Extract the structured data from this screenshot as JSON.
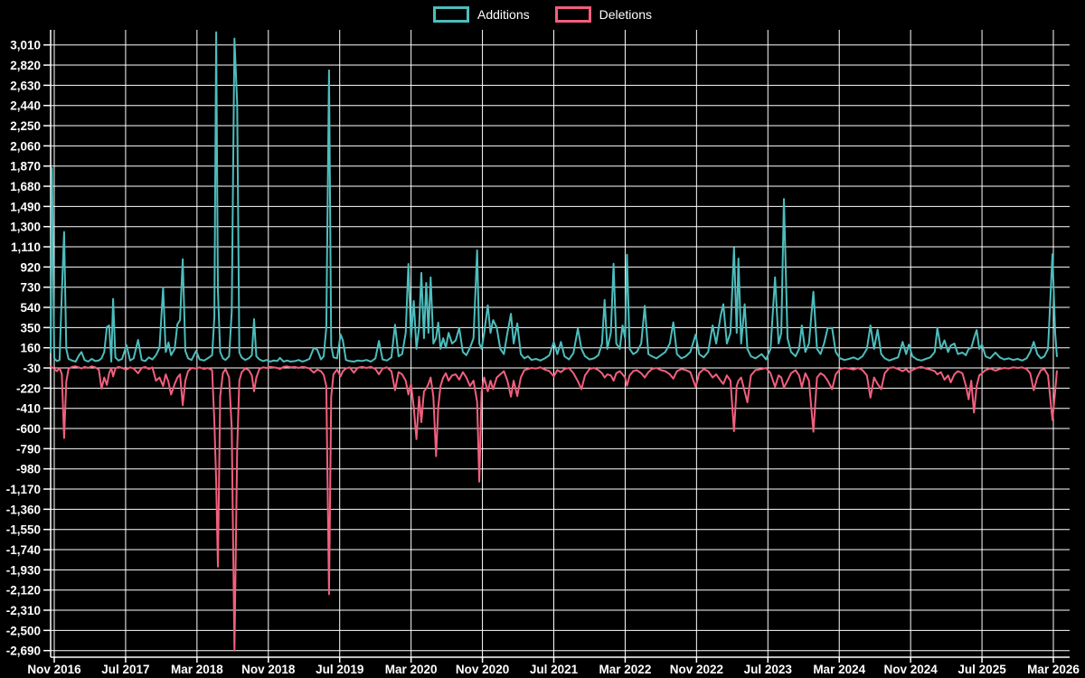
{
  "legend": {
    "additions_label": "Additions",
    "deletions_label": "Deletions"
  },
  "colors": {
    "background": "#000000",
    "grid": "#ffffff",
    "text": "#ffffff",
    "additions": "#4dbdbd",
    "deletions": "#f25f7e"
  },
  "chart_data": {
    "type": "line",
    "title": "",
    "xlabel": "",
    "ylabel": "",
    "legend_position": "top-center",
    "grid": true,
    "ylim": [
      -2780,
      3160
    ],
    "y_tick_step": 190,
    "y_ticks": [
      3010,
      2820,
      2630,
      2440,
      2250,
      2060,
      1870,
      1680,
      1490,
      1300,
      1110,
      920,
      730,
      540,
      350,
      160,
      -30,
      -220,
      -410,
      -600,
      -790,
      -980,
      -1170,
      -1360,
      -1550,
      -1740,
      -1930,
      -2120,
      -2310,
      -2500,
      -2690
    ],
    "x_ticks": [
      {
        "label": "Nov 2016",
        "month": 0
      },
      {
        "label": "Jul 2017",
        "month": 8
      },
      {
        "label": "Mar 2018",
        "month": 16
      },
      {
        "label": "Nov 2018",
        "month": 24
      },
      {
        "label": "Jul 2019",
        "month": 32
      },
      {
        "label": "Mar 2020",
        "month": 40
      },
      {
        "label": "Nov 2020",
        "month": 48
      },
      {
        "label": "Jul 2021",
        "month": 56
      },
      {
        "label": "Mar 2022",
        "month": 64
      },
      {
        "label": "Nov 2022",
        "month": 72
      },
      {
        "label": "Jul 2023",
        "month": 80
      },
      {
        "label": "Mar 2024",
        "month": 88
      },
      {
        "label": "Nov 2024",
        "month": 96
      },
      {
        "label": "Jul 2025",
        "month": 104
      },
      {
        "label": "Mar 2026",
        "month": 112
      }
    ],
    "series": [
      {
        "name": "Additions",
        "color": "#4dbdbd",
        "point_index": 1
      },
      {
        "name": "Deletions",
        "color": "#f25f7e",
        "point_index": 2
      }
    ],
    "points_format": "[months_since_Nov_2016, additions, deletions]",
    "points": [
      [
        -0.4,
        120,
        -15
      ],
      [
        -0.25,
        1850,
        -25
      ],
      [
        0.0,
        60,
        -40
      ],
      [
        0.3,
        35,
        -60
      ],
      [
        0.6,
        45,
        -30
      ],
      [
        0.85,
        680,
        -90
      ],
      [
        1.1,
        1250,
        -690
      ],
      [
        1.35,
        150,
        -160
      ],
      [
        1.6,
        55,
        -40
      ],
      [
        2.0,
        40,
        -20
      ],
      [
        2.4,
        30,
        -15
      ],
      [
        2.75,
        85,
        -25
      ],
      [
        3.05,
        120,
        -35
      ],
      [
        3.4,
        45,
        -20
      ],
      [
        3.8,
        30,
        -30
      ],
      [
        4.2,
        55,
        -15
      ],
      [
        4.6,
        35,
        -25
      ],
      [
        5.0,
        40,
        -45
      ],
      [
        5.3,
        60,
        -225
      ],
      [
        5.6,
        120,
        -120
      ],
      [
        5.9,
        355,
        -190
      ],
      [
        6.15,
        370,
        -80
      ],
      [
        6.4,
        30,
        -30
      ],
      [
        6.6,
        620,
        -110
      ],
      [
        6.85,
        70,
        -35
      ],
      [
        7.2,
        40,
        -20
      ],
      [
        7.6,
        55,
        -30
      ],
      [
        8.1,
        185,
        -45
      ],
      [
        8.5,
        40,
        -25
      ],
      [
        8.9,
        60,
        -35
      ],
      [
        9.4,
        234,
        -80
      ],
      [
        9.8,
        45,
        -30
      ],
      [
        10.2,
        35,
        -20
      ],
      [
        10.6,
        70,
        -40
      ],
      [
        11.0,
        50,
        -25
      ],
      [
        11.4,
        90,
        -150
      ],
      [
        11.8,
        160,
        -120
      ],
      [
        12.2,
        727,
        -200
      ],
      [
        12.5,
        120,
        -90
      ],
      [
        12.8,
        210,
        -160
      ],
      [
        13.1,
        90,
        -280
      ],
      [
        13.5,
        150,
        -180
      ],
      [
        13.8,
        380,
        -120
      ],
      [
        14.1,
        420,
        -90
      ],
      [
        14.4,
        994,
        -380
      ],
      [
        14.7,
        130,
        -150
      ],
      [
        15.0,
        60,
        -60
      ],
      [
        15.4,
        45,
        -30
      ],
      [
        15.9,
        130,
        -35
      ],
      [
        16.3,
        50,
        -25
      ],
      [
        16.8,
        40,
        -40
      ],
      [
        17.2,
        60,
        -30
      ],
      [
        17.7,
        90,
        -50
      ],
      [
        17.95,
        450,
        -540
      ],
      [
        18.15,
        3130,
        -1100
      ],
      [
        18.35,
        700,
        -1900
      ],
      [
        18.6,
        120,
        -300
      ],
      [
        18.9,
        60,
        -80
      ],
      [
        19.2,
        45,
        -40
      ],
      [
        19.6,
        80,
        -120
      ],
      [
        19.9,
        500,
        -600
      ],
      [
        20.2,
        3070,
        -2690
      ],
      [
        20.5,
        2460,
        -800
      ],
      [
        20.75,
        115,
        -150
      ],
      [
        21.0,
        70,
        -72
      ],
      [
        21.4,
        45,
        -35
      ],
      [
        21.8,
        60,
        -50
      ],
      [
        22.15,
        90,
        -100
      ],
      [
        22.4,
        430,
        -250
      ],
      [
        22.65,
        80,
        -120
      ],
      [
        23.0,
        50,
        -40
      ],
      [
        23.4,
        35,
        -25
      ],
      [
        23.8,
        45,
        -30
      ],
      [
        24.2,
        30,
        -20
      ],
      [
        24.6,
        40,
        -25
      ],
      [
        25.0,
        35,
        -30
      ],
      [
        25.3,
        65,
        -40
      ],
      [
        25.7,
        30,
        -20
      ],
      [
        26.1,
        40,
        -15
      ],
      [
        26.5,
        30,
        -25
      ],
      [
        27.0,
        35,
        -20
      ],
      [
        27.4,
        45,
        -30
      ],
      [
        27.8,
        30,
        -20
      ],
      [
        28.2,
        40,
        -25
      ],
      [
        28.6,
        55,
        -35
      ],
      [
        29.1,
        160,
        -75
      ],
      [
        29.5,
        140,
        -45
      ],
      [
        29.9,
        50,
        -60
      ],
      [
        30.2,
        80,
        -95
      ],
      [
        30.5,
        350,
        -200
      ],
      [
        30.8,
        2770,
        -2160
      ],
      [
        31.05,
        180,
        -300
      ],
      [
        31.3,
        70,
        -90
      ],
      [
        31.7,
        60,
        -45
      ],
      [
        32.1,
        285,
        -110
      ],
      [
        32.35,
        230,
        -60
      ],
      [
        32.7,
        45,
        -35
      ],
      [
        33.1,
        35,
        -25
      ],
      [
        33.6,
        30,
        -75
      ],
      [
        34.0,
        40,
        -30
      ],
      [
        34.5,
        35,
        -20
      ],
      [
        35.0,
        45,
        -30
      ],
      [
        35.5,
        30,
        -20
      ],
      [
        36.0,
        60,
        -40
      ],
      [
        36.4,
        224,
        -90
      ],
      [
        36.8,
        50,
        -35
      ],
      [
        37.3,
        40,
        -25
      ],
      [
        37.8,
        70,
        -60
      ],
      [
        38.2,
        377,
        -240
      ],
      [
        38.6,
        80,
        -70
      ],
      [
        39.0,
        100,
        -90
      ],
      [
        39.4,
        300,
        -150
      ],
      [
        39.7,
        949,
        -280
      ],
      [
        40.0,
        250,
        -180
      ],
      [
        40.3,
        600,
        -400
      ],
      [
        40.6,
        150,
        -700
      ],
      [
        40.9,
        350,
        -300
      ],
      [
        41.15,
        864,
        -540
      ],
      [
        41.45,
        250,
        -250
      ],
      [
        41.7,
        770,
        -225
      ],
      [
        41.95,
        300,
        -180
      ],
      [
        42.2,
        823,
        -120
      ],
      [
        42.5,
        200,
        -300
      ],
      [
        42.8,
        250,
        -860
      ],
      [
        43.05,
        397,
        -400
      ],
      [
        43.3,
        150,
        -200
      ],
      [
        43.6,
        250,
        -120
      ],
      [
        43.9,
        160,
        -80
      ],
      [
        44.2,
        300,
        -150
      ],
      [
        44.6,
        200,
        -100
      ],
      [
        45.0,
        230,
        -90
      ],
      [
        45.4,
        345,
        -140
      ],
      [
        45.8,
        120,
        -70
      ],
      [
        46.2,
        90,
        -120
      ],
      [
        46.6,
        160,
        -200
      ],
      [
        47.0,
        250,
        -150
      ],
      [
        47.4,
        1077,
        -350
      ],
      [
        47.65,
        200,
        -1100
      ],
      [
        47.9,
        150,
        -250
      ],
      [
        48.2,
        300,
        -120
      ],
      [
        48.6,
        560,
        -250
      ],
      [
        48.9,
        300,
        -150
      ],
      [
        49.2,
        420,
        -230
      ],
      [
        49.6,
        350,
        -120
      ],
      [
        50.0,
        150,
        -90
      ],
      [
        50.4,
        100,
        -60
      ],
      [
        50.8,
        300,
        -150
      ],
      [
        51.2,
        480,
        -300
      ],
      [
        51.5,
        200,
        -150
      ],
      [
        51.9,
        390,
        -295
      ],
      [
        52.3,
        100,
        -120
      ],
      [
        52.7,
        60,
        -50
      ],
      [
        53.1,
        80,
        -40
      ],
      [
        53.5,
        45,
        -30
      ],
      [
        54.0,
        55,
        -35
      ],
      [
        54.5,
        40,
        -25
      ],
      [
        55.0,
        60,
        -45
      ],
      [
        55.5,
        90,
        -60
      ],
      [
        56.0,
        215,
        -110
      ],
      [
        56.4,
        100,
        -50
      ],
      [
        56.8,
        215,
        -70
      ],
      [
        57.2,
        80,
        -40
      ],
      [
        57.7,
        50,
        -30
      ],
      [
        58.2,
        110,
        -80
      ],
      [
        58.7,
        340,
        -155
      ],
      [
        59.1,
        150,
        -230
      ],
      [
        59.5,
        80,
        -100
      ],
      [
        60.0,
        50,
        -40
      ],
      [
        60.5,
        60,
        -30
      ],
      [
        61.0,
        90,
        -50
      ],
      [
        61.4,
        200,
        -80
      ],
      [
        61.7,
        610,
        -120
      ],
      [
        62.0,
        150,
        -90
      ],
      [
        62.4,
        300,
        -100
      ],
      [
        62.7,
        950,
        -150
      ],
      [
        63.0,
        200,
        -80
      ],
      [
        63.4,
        150,
        -60
      ],
      [
        63.7,
        370,
        -90
      ],
      [
        64.0,
        250,
        -120
      ],
      [
        64.2,
        1035,
        -197
      ],
      [
        64.5,
        150,
        -100
      ],
      [
        64.9,
        100,
        -60
      ],
      [
        65.3,
        120,
        -50
      ],
      [
        65.8,
        200,
        -80
      ],
      [
        66.2,
        555,
        -120
      ],
      [
        66.6,
        100,
        -70
      ],
      [
        67.0,
        80,
        -40
      ],
      [
        67.5,
        60,
        -30
      ],
      [
        68.0,
        90,
        -50
      ],
      [
        68.5,
        120,
        -60
      ],
      [
        69.0,
        200,
        -90
      ],
      [
        69.4,
        400,
        -130
      ],
      [
        69.8,
        100,
        -60
      ],
      [
        70.3,
        60,
        -40
      ],
      [
        70.8,
        80,
        -50
      ],
      [
        71.3,
        120,
        -70
      ],
      [
        71.9,
        285,
        -210
      ],
      [
        72.3,
        100,
        -80
      ],
      [
        72.8,
        70,
        -40
      ],
      [
        73.3,
        120,
        -60
      ],
      [
        73.8,
        370,
        -120
      ],
      [
        74.2,
        200,
        -90
      ],
      [
        74.7,
        460,
        -150
      ],
      [
        75.0,
        570,
        -180
      ],
      [
        75.4,
        200,
        -100
      ],
      [
        75.8,
        300,
        -150
      ],
      [
        76.2,
        1100,
        -625
      ],
      [
        76.5,
        300,
        -200
      ],
      [
        76.7,
        1000,
        -150
      ],
      [
        77.0,
        200,
        -120
      ],
      [
        77.4,
        570,
        -250
      ],
      [
        77.7,
        150,
        -353
      ],
      [
        78.1,
        80,
        -100
      ],
      [
        78.6,
        60,
        -50
      ],
      [
        79.3,
        100,
        -40
      ],
      [
        79.8,
        50,
        -30
      ],
      [
        80.3,
        150,
        -80
      ],
      [
        80.8,
        823,
        -208
      ],
      [
        81.2,
        200,
        -100
      ],
      [
        81.5,
        300,
        -120
      ],
      [
        81.8,
        1560,
        -215
      ],
      [
        82.2,
        250,
        -150
      ],
      [
        82.6,
        120,
        -80
      ],
      [
        83.1,
        80,
        -50
      ],
      [
        83.5,
        150,
        -100
      ],
      [
        83.8,
        370,
        -210
      ],
      [
        84.2,
        120,
        -80
      ],
      [
        84.6,
        200,
        -150
      ],
      [
        85.1,
        687,
        -630
      ],
      [
        85.5,
        150,
        -120
      ],
      [
        85.9,
        100,
        -80
      ],
      [
        86.3,
        200,
        -100
      ],
      [
        86.7,
        345,
        -150
      ],
      [
        87.2,
        345,
        -230
      ],
      [
        87.6,
        120,
        -90
      ],
      [
        88.1,
        60,
        -40
      ],
      [
        88.6,
        45,
        -30
      ],
      [
        89.1,
        55,
        -35
      ],
      [
        89.6,
        70,
        -45
      ],
      [
        90.1,
        50,
        -30
      ],
      [
        90.6,
        80,
        -50
      ],
      [
        91.1,
        150,
        -100
      ],
      [
        91.5,
        370,
        -310
      ],
      [
        91.9,
        150,
        -120
      ],
      [
        92.3,
        330,
        -180
      ],
      [
        92.7,
        100,
        -230
      ],
      [
        93.1,
        60,
        -80
      ],
      [
        93.6,
        40,
        -30
      ],
      [
        94.1,
        55,
        -25
      ],
      [
        94.6,
        70,
        -40
      ],
      [
        95.1,
        215,
        -60
      ],
      [
        95.5,
        100,
        -40
      ],
      [
        95.8,
        190,
        -70
      ],
      [
        96.2,
        80,
        -50
      ],
      [
        96.7,
        50,
        -30
      ],
      [
        97.2,
        40,
        -20
      ],
      [
        97.7,
        55,
        -35
      ],
      [
        98.2,
        70,
        -45
      ],
      [
        98.7,
        120,
        -60
      ],
      [
        99.0,
        345,
        -90
      ],
      [
        99.4,
        150,
        -70
      ],
      [
        99.8,
        230,
        -140
      ],
      [
        100.2,
        120,
        -100
      ],
      [
        100.5,
        180,
        -166
      ],
      [
        100.9,
        200,
        -90
      ],
      [
        101.3,
        100,
        -60
      ],
      [
        101.8,
        115,
        -80
      ],
      [
        102.2,
        90,
        -200
      ],
      [
        102.5,
        150,
        -325
      ],
      [
        102.8,
        157,
        -150
      ],
      [
        103.1,
        250,
        -450
      ],
      [
        103.4,
        327,
        -200
      ],
      [
        103.7,
        150,
        -100
      ],
      [
        104.0,
        190,
        -80
      ],
      [
        104.4,
        80,
        -50
      ],
      [
        104.9,
        60,
        -35
      ],
      [
        105.5,
        115,
        -55
      ],
      [
        106.0,
        70,
        -40
      ],
      [
        106.5,
        50,
        -30
      ],
      [
        107.0,
        60,
        -35
      ],
      [
        107.5,
        45,
        -25
      ],
      [
        108.0,
        55,
        -30
      ],
      [
        108.5,
        40,
        -25
      ],
      [
        109.0,
        60,
        -40
      ],
      [
        109.4,
        120,
        -80
      ],
      [
        109.8,
        215,
        -240
      ],
      [
        110.2,
        100,
        -120
      ],
      [
        110.6,
        60,
        -50
      ],
      [
        111.0,
        80,
        -40
      ],
      [
        111.4,
        150,
        -100
      ],
      [
        111.9,
        1040,
        -520
      ],
      [
        112.2,
        300,
        -250
      ],
      [
        112.4,
        80,
        -60
      ]
    ]
  }
}
